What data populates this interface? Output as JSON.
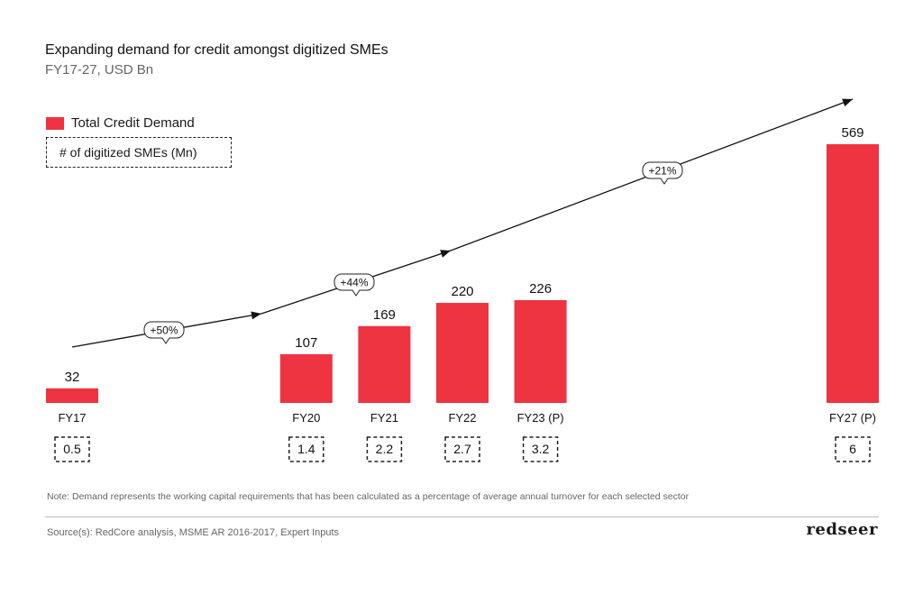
{
  "header": {
    "title": "Expanding demand for credit amongst digitized SMEs",
    "subtitle": "FY17-27, USD Bn"
  },
  "legend": {
    "bar_label": "Total Credit Demand",
    "sme_label": "# of digitized SMEs (Mn)"
  },
  "colors": {
    "bar": "#ee3341",
    "trend": "#111111"
  },
  "chart_data": {
    "type": "bar",
    "categories": [
      "FY17",
      "FY20",
      "FY21",
      "FY22",
      "FY23 (P)",
      "FY27 (P)"
    ],
    "years": [
      2017,
      2020,
      2021,
      2022,
      2023,
      2027
    ],
    "series": [
      {
        "name": "Total Credit Demand",
        "values": [
          32,
          107,
          169,
          220,
          226,
          569
        ],
        "labels": [
          "32",
          "107",
          "169",
          "220",
          "226",
          "569"
        ]
      }
    ],
    "digitized_smes": [
      "0.5",
      "1.4",
      "2.2",
      "2.7",
      "3.2",
      "6"
    ],
    "growth_callouts": [
      "+50%",
      "+44%",
      "+21%"
    ],
    "ylim": [
      0,
      569
    ]
  },
  "note": "Note: Demand represents the working capital requirements that has been calculated as a percentage of average annual turnover for each selected sector",
  "source": "Source(s): RedCore analysis, MSME AR 2016-2017, Expert Inputs",
  "logo": "redseer"
}
